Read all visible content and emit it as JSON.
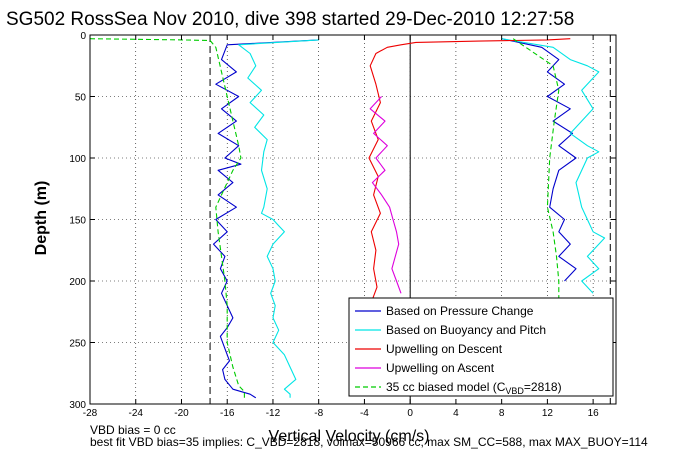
{
  "figure": {
    "title": "SG502 RossSea Nov 2010, dive 398 started 29-Dec-2010 12:27:58",
    "footer_line1": "VBD bias = 0 cc",
    "footer_line2": "best fit VBD bias=35 implies: C_VBD=2818, volmax=50966 cc, max SM_CC=588, max MAX_BUOY=114"
  },
  "chart_data": {
    "type": "line",
    "xlabel": "Vertical Velocity (cm/s)",
    "ylabel": "Depth (m)",
    "xlim": [
      -28,
      18
    ],
    "ylim": [
      300,
      0
    ],
    "y_reversed": true,
    "xticks": [
      -28,
      -24,
      -20,
      -16,
      -12,
      -8,
      -4,
      0,
      4,
      8,
      12,
      16
    ],
    "yticks": [
      0,
      50,
      100,
      150,
      200,
      250,
      300
    ],
    "grid": true,
    "legend_location": "bottom-right",
    "reference_lines": {
      "dashed_verticals": [
        -17.5,
        17.5
      ],
      "solid_verticals": [
        0
      ]
    },
    "series": [
      {
        "name": "Based on Pressure Change",
        "color": "#0000cc",
        "segments": [
          {
            "x": [
              -8,
              -16,
              -16.5,
              -15.2,
              -17.0,
              -15.0,
              -16.5,
              -15.2,
              -16.8,
              -15.0,
              -16.2,
              -14.8,
              -16.8,
              -15.5,
              -16.8,
              -15.2,
              -17.0,
              -16.0,
              -17.2,
              -16.2,
              -16.6,
              -16.0,
              -16.5,
              -16.0,
              -15.5,
              -16.0,
              -16.6,
              -16.2,
              -15.8,
              -16.4,
              -16.2,
              -15.5,
              -14.0,
              -13.5
            ],
            "y": [
              4,
              8,
              20,
              30,
              40,
              50,
              60,
              70,
              80,
              90,
              100,
              105,
              110,
              120,
              130,
              140,
              150,
              160,
              170,
              180,
              190,
              200,
              210,
              220,
              230,
              238,
              245,
              255,
              265,
              272,
              280,
              288,
              292,
              295
            ]
          },
          {
            "x": [
              8,
              11.5,
              13,
              12.0,
              13.5,
              12.0,
              14.0,
              12.5,
              14.2,
              13.0,
              14.5,
              13.0,
              12.5,
              12.2,
              13.5,
              13.0,
              14.0,
              13.0,
              14.5,
              13.5
            ],
            "y": [
              3,
              10,
              20,
              30,
              40,
              50,
              60,
              70,
              80,
              90,
              100,
              110,
              125,
              140,
              150,
              160,
              170,
              180,
              190,
              200
            ]
          }
        ]
      },
      {
        "name": "Based on Buoyancy and Pitch",
        "color": "#00e5e5",
        "segments": [
          {
            "x": [
              -8,
              -15,
              -14.0,
              -13.5,
              -14.2,
              -13.0,
              -14.0,
              -12.8,
              -13.6,
              -12.5,
              -12.8,
              -13.0,
              -12.5,
              -12.8,
              -13.0,
              -12.0,
              -11.5,
              -11.0,
              -12.0,
              -12.5,
              -12.0,
              -11.8,
              -12.2,
              -11.8,
              -12.0,
              -11.5,
              -12.0,
              -11.0,
              -10.5,
              -10.0,
              -11.0,
              -10.5,
              -10.5
            ],
            "y": [
              4,
              8,
              15,
              25,
              35,
              45,
              55,
              65,
              75,
              85,
              95,
              110,
              125,
              140,
              145,
              150,
              155,
              160,
              170,
              180,
              190,
              200,
              210,
              220,
              230,
              240,
              250,
              260,
              270,
              280,
              288,
              292,
              295
            ]
          },
          {
            "x": [
              8,
              12.5,
              14.0,
              15.5,
              16.5,
              15.0,
              16.0,
              14.0,
              15.5,
              16.5,
              15.5,
              14.5,
              15.0,
              15.5,
              16.0,
              17.0,
              15.5,
              16.5,
              15.0,
              16.0
            ],
            "y": [
              3,
              10,
              20,
              25,
              30,
              45,
              60,
              80,
              90,
              95,
              100,
              120,
              140,
              150,
              160,
              165,
              180,
              190,
              200,
              210
            ]
          }
        ]
      },
      {
        "name": "Upwelling on Descent",
        "color": "#ee0000",
        "segments": [
          {
            "x": [
              14.0,
              12.0,
              9.0,
              6.0,
              3.0,
              0.5,
              -0.8,
              -2.0,
              -3.0,
              -3.5,
              -3.0,
              -2.6,
              -3.4,
              -2.8,
              -3.6,
              -2.8,
              -3.2,
              -2.6,
              -3.4,
              -3.0,
              -3.2,
              -2.9,
              -3.3,
              -3.0
            ],
            "y": [
              3,
              4,
              4.5,
              5,
              5.5,
              6,
              8,
              10,
              15,
              25,
              40,
              55,
              70,
              85,
              100,
              115,
              130,
              145,
              160,
              175,
              190,
              205,
              215,
              225
            ]
          }
        ]
      },
      {
        "name": "Upwelling on Ascent",
        "color": "#dd00dd",
        "segments": [
          {
            "x": [
              -2.5,
              -3.5,
              -2.2,
              -3.2,
              -2.0,
              -3.0,
              -2.2,
              -3.3,
              -2.5,
              -1.8,
              -1.5,
              -1.2,
              -1.0,
              -1.3,
              -1.6,
              -1.2,
              -0.8
            ],
            "y": [
              50,
              60,
              70,
              80,
              90,
              100,
              110,
              120,
              130,
              140,
              150,
              160,
              170,
              180,
              190,
              200,
              210
            ]
          }
        ]
      },
      {
        "name": "35 cc biased model (C_VBD=2818)",
        "color": "#00cc00",
        "dashed": true,
        "segments": [
          {
            "x": [
              -28,
              -20,
              -17.5,
              -17.0,
              -16.5,
              -16.0,
              -15.5,
              -15.0,
              -14.8,
              -15.5,
              -16.0,
              -16.5,
              -17.0,
              -16.8,
              -16.5,
              -16.2,
              -16.0,
              -16.0,
              -15.5,
              -15.0,
              -14.5,
              -14.5
            ],
            "y": [
              3,
              4,
              4.5,
              10,
              30,
              50,
              70,
              90,
              100,
              110,
              120,
              130,
              140,
              160,
              180,
              200,
              220,
              250,
              270,
              285,
              290,
              295
            ]
          },
          {
            "x": [
              9,
              12.5,
              13.0,
              12.6,
              12.2,
              12.0,
              12.5,
              12.8,
              13.0,
              13.0
            ],
            "y": [
              3,
              25,
              45,
              70,
              100,
              140,
              160,
              180,
              200,
              215
            ]
          }
        ]
      }
    ]
  },
  "legend": {
    "entries": [
      {
        "label": "Based on Pressure Change",
        "color": "#0000cc",
        "dashed": false
      },
      {
        "label": "Based on Buoyancy and Pitch",
        "color": "#00e5e5",
        "dashed": false
      },
      {
        "label": "Upwelling on Descent",
        "color": "#ee0000",
        "dashed": false
      },
      {
        "label": "Upwelling on Ascent",
        "color": "#dd00dd",
        "dashed": false
      },
      {
        "label": "35 cc biased model (C",
        "sub": "VBD",
        "label_end": "=2818)",
        "color": "#00cc00",
        "dashed": true
      }
    ]
  }
}
